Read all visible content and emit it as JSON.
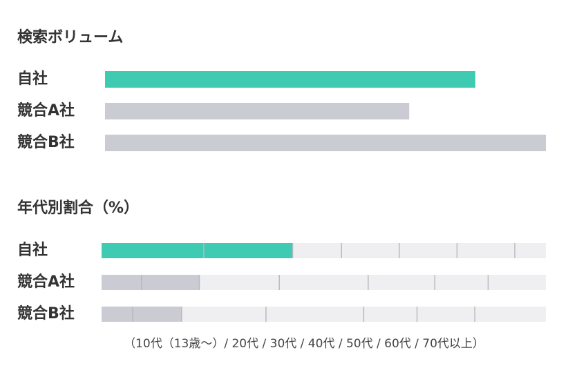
{
  "chart_data": [
    {
      "type": "hbar",
      "title": "検索ボリューム",
      "categories": [
        "自社",
        "競合A社",
        "競合B社"
      ],
      "values": [
        84,
        69,
        100
      ],
      "colors": [
        "#3ecbb2",
        "#cbcbd4",
        "#cbcbd4"
      ],
      "xlim": [
        0,
        100
      ]
    },
    {
      "type": "stacked_hbar",
      "title": "年代別割合（%）",
      "categories": [
        "自社",
        "競合A社",
        "競合B社"
      ],
      "values": [
        [
          23,
          20,
          11,
          13,
          13,
          13,
          7
        ],
        [
          9,
          13,
          18,
          20,
          15,
          12,
          13
        ],
        [
          7,
          11,
          19,
          22,
          12,
          13,
          16
        ]
      ],
      "segment_colors": [
        [
          "#3ecbb2",
          "#3ecbb2",
          "#efeff2",
          "#efeff2",
          "#efeff2",
          "#efeff2",
          "#efeff2"
        ],
        [
          "#cbcbd4",
          "#cbcbd4",
          "#efeff2",
          "#efeff2",
          "#efeff2",
          "#efeff2",
          "#efeff2"
        ],
        [
          "#cbcbd4",
          "#cbcbd4",
          "#efeff2",
          "#efeff2",
          "#efeff2",
          "#efeff2",
          "#efeff2"
        ]
      ],
      "xlim": [
        0,
        100
      ],
      "note": "（10代（13歳〜）/ 20代 / 30代 / 40代 / 50代 / 60代 / 70代以上）"
    }
  ]
}
